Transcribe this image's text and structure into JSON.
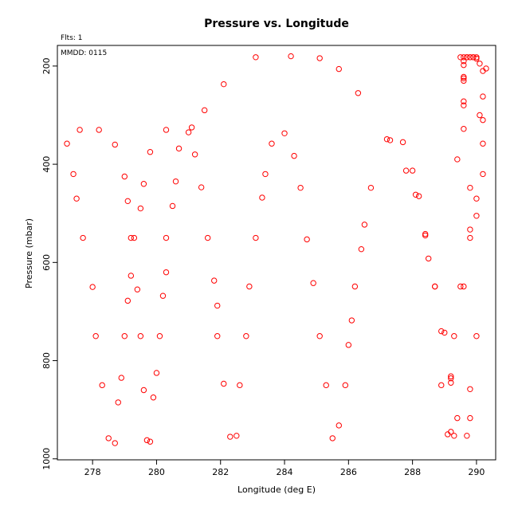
{
  "chart_data": {
    "type": "scatter",
    "title": "Pressure vs. Longitude",
    "xlabel": "Longitude (deg E)",
    "ylabel": "Pressure (mbar)",
    "flts_label": "Flts: 1",
    "mmdd_label": "MMDD: 0115",
    "xlim": [
      276.9,
      290.6
    ],
    "ylim": [
      1002,
      158
    ],
    "y_inverted": true,
    "grid": false,
    "marker": "open-circle",
    "marker_color": "#ff0000",
    "xticks": [
      "278",
      "280",
      "282",
      "284",
      "286",
      "288",
      "290"
    ],
    "yticks": [
      "200",
      "400",
      "600",
      "800",
      "1000"
    ],
    "points": [
      [
        277.2,
        358
      ],
      [
        277.4,
        420
      ],
      [
        277.5,
        470
      ],
      [
        277.6,
        330
      ],
      [
        277.7,
        550
      ],
      [
        278.0,
        650
      ],
      [
        278.2,
        330
      ],
      [
        278.7,
        360
      ],
      [
        278.1,
        750
      ],
      [
        278.3,
        850
      ],
      [
        278.5,
        958
      ],
      [
        278.7,
        968
      ],
      [
        278.8,
        885
      ],
      [
        278.9,
        835
      ],
      [
        279.0,
        425
      ],
      [
        279.0,
        750
      ],
      [
        279.1,
        475
      ],
      [
        279.1,
        678
      ],
      [
        279.2,
        550
      ],
      [
        279.2,
        627
      ],
      [
        279.3,
        550
      ],
      [
        279.4,
        655
      ],
      [
        279.5,
        490
      ],
      [
        279.5,
        750
      ],
      [
        279.6,
        440
      ],
      [
        279.6,
        860
      ],
      [
        279.7,
        962
      ],
      [
        279.8,
        375
      ],
      [
        279.8,
        965
      ],
      [
        279.9,
        875
      ],
      [
        280.0,
        825
      ],
      [
        280.1,
        750
      ],
      [
        280.2,
        668
      ],
      [
        280.3,
        620
      ],
      [
        280.3,
        330
      ],
      [
        280.3,
        550
      ],
      [
        280.5,
        485
      ],
      [
        280.6,
        435
      ],
      [
        280.7,
        368
      ],
      [
        281.0,
        335
      ],
      [
        281.1,
        325
      ],
      [
        281.2,
        380
      ],
      [
        281.4,
        447
      ],
      [
        281.5,
        290
      ],
      [
        281.6,
        550
      ],
      [
        281.8,
        637
      ],
      [
        281.9,
        688
      ],
      [
        281.9,
        750
      ],
      [
        282.1,
        237
      ],
      [
        282.1,
        847
      ],
      [
        282.3,
        955
      ],
      [
        282.5,
        953
      ],
      [
        282.6,
        850
      ],
      [
        282.8,
        750
      ],
      [
        282.9,
        649
      ],
      [
        283.1,
        182
      ],
      [
        283.1,
        550
      ],
      [
        283.3,
        468
      ],
      [
        283.4,
        420
      ],
      [
        283.6,
        358
      ],
      [
        284.0,
        337
      ],
      [
        284.2,
        180
      ],
      [
        284.3,
        383
      ],
      [
        284.5,
        448
      ],
      [
        284.7,
        553
      ],
      [
        284.9,
        642
      ],
      [
        285.1,
        184
      ],
      [
        285.1,
        750
      ],
      [
        285.3,
        850
      ],
      [
        285.5,
        958
      ],
      [
        285.7,
        206
      ],
      [
        285.7,
        932
      ],
      [
        285.9,
        850
      ],
      [
        286.0,
        768
      ],
      [
        286.1,
        718
      ],
      [
        286.2,
        649
      ],
      [
        286.3,
        255
      ],
      [
        286.4,
        573
      ],
      [
        286.5,
        523
      ],
      [
        286.7,
        448
      ],
      [
        287.2,
        349
      ],
      [
        287.3,
        351
      ],
      [
        287.7,
        355
      ],
      [
        287.8,
        413
      ],
      [
        288.0,
        413
      ],
      [
        288.1,
        462
      ],
      [
        288.2,
        465
      ],
      [
        288.4,
        542
      ],
      [
        288.4,
        545
      ],
      [
        288.5,
        592
      ],
      [
        288.7,
        649
      ],
      [
        288.7,
        649
      ],
      [
        288.9,
        740
      ],
      [
        288.9,
        850
      ],
      [
        289.0,
        743
      ],
      [
        289.1,
        950
      ],
      [
        289.2,
        832
      ],
      [
        289.2,
        836
      ],
      [
        289.2,
        845
      ],
      [
        289.2,
        945
      ],
      [
        289.3,
        750
      ],
      [
        289.3,
        953
      ],
      [
        289.4,
        917
      ],
      [
        289.4,
        390
      ],
      [
        289.5,
        649
      ],
      [
        289.5,
        182
      ],
      [
        289.6,
        190
      ],
      [
        289.6,
        198
      ],
      [
        289.6,
        222
      ],
      [
        289.6,
        225
      ],
      [
        289.6,
        230
      ],
      [
        289.6,
        272
      ],
      [
        289.6,
        280
      ],
      [
        289.6,
        328
      ],
      [
        289.6,
        649
      ],
      [
        289.7,
        953
      ],
      [
        289.6,
        182
      ],
      [
        289.7,
        182
      ],
      [
        289.7,
        182
      ],
      [
        289.8,
        182
      ],
      [
        289.8,
        182
      ],
      [
        289.9,
        182
      ],
      [
        289.9,
        182
      ],
      [
        290.0,
        182
      ],
      [
        290.0,
        185
      ],
      [
        290.1,
        195
      ],
      [
        290.2,
        210
      ],
      [
        290.2,
        262
      ],
      [
        290.3,
        205
      ],
      [
        290.1,
        300
      ],
      [
        290.2,
        310
      ],
      [
        290.2,
        358
      ],
      [
        290.2,
        420
      ],
      [
        289.8,
        448
      ],
      [
        290.0,
        470
      ],
      [
        290.0,
        505
      ],
      [
        289.8,
        533
      ],
      [
        289.8,
        550
      ],
      [
        290.0,
        750
      ],
      [
        289.8,
        858
      ],
      [
        289.8,
        917
      ]
    ]
  }
}
